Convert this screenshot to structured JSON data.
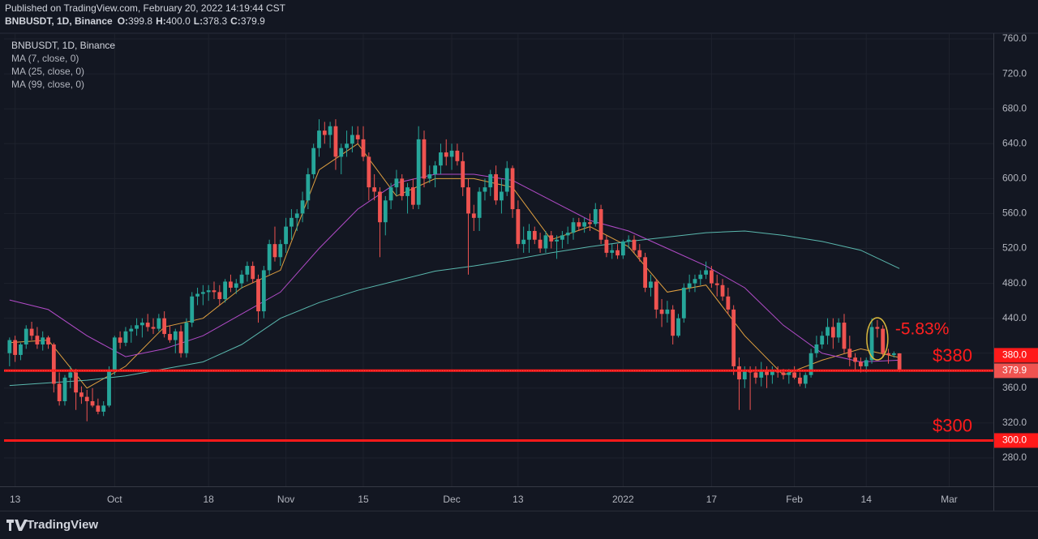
{
  "header": {
    "published": "Published on TradingView.com, February 20, 2022 14:19:44 CST",
    "ohlc": [
      {
        "key": "O:",
        "value": "399.8"
      },
      {
        "key": "H:",
        "value": "400.0"
      },
      {
        "key": "L:",
        "value": "378.3"
      },
      {
        "key": "C:",
        "value": "379.9"
      }
    ]
  },
  "chart_data": {
    "type": "candlestick",
    "title": "BNBUSDT, 1D, Binance",
    "x": [
      "2021-09-12",
      "2021-09-13",
      "2021-09-14",
      "2021-09-15",
      "2021-09-16",
      "2021-09-17",
      "2021-09-18",
      "2021-09-19",
      "2021-09-20",
      "2021-09-21",
      "2021-09-22",
      "2021-09-23",
      "2021-09-24",
      "2021-09-25",
      "2021-09-26",
      "2021-09-27",
      "2021-09-28",
      "2021-09-29",
      "2021-09-30",
      "2021-10-01",
      "2021-10-02",
      "2021-10-03",
      "2021-10-04",
      "2021-10-05",
      "2021-10-06",
      "2021-10-07",
      "2021-10-08",
      "2021-10-09",
      "2021-10-10",
      "2021-10-11",
      "2021-10-12",
      "2021-10-13",
      "2021-10-14",
      "2021-10-15",
      "2021-10-16",
      "2021-10-17",
      "2021-10-18",
      "2021-10-19",
      "2021-10-20",
      "2021-10-21",
      "2021-10-22",
      "2021-10-23",
      "2021-10-24",
      "2021-10-25",
      "2021-10-26",
      "2021-10-27",
      "2021-10-28",
      "2021-10-29",
      "2021-10-30",
      "2021-10-31",
      "2021-11-01",
      "2021-11-02",
      "2021-11-03",
      "2021-11-04",
      "2021-11-05",
      "2021-11-06",
      "2021-11-07",
      "2021-11-08",
      "2021-11-09",
      "2021-11-10",
      "2021-11-11",
      "2021-11-12",
      "2021-11-13",
      "2021-11-14",
      "2021-11-15",
      "2021-11-16",
      "2021-11-17",
      "2021-11-18",
      "2021-11-19",
      "2021-11-20",
      "2021-11-21",
      "2021-11-22",
      "2021-11-23",
      "2021-11-24",
      "2021-11-25",
      "2021-11-26",
      "2021-11-27",
      "2021-11-28",
      "2021-11-29",
      "2021-11-30",
      "2021-12-01",
      "2021-12-02",
      "2021-12-03",
      "2021-12-04",
      "2021-12-05",
      "2021-12-06",
      "2021-12-07",
      "2021-12-08",
      "2021-12-09",
      "2021-12-10",
      "2021-12-11",
      "2021-12-12",
      "2021-12-13",
      "2021-12-14",
      "2021-12-15",
      "2021-12-16",
      "2021-12-17",
      "2021-12-18",
      "2021-12-19",
      "2021-12-20",
      "2021-12-21",
      "2021-12-22",
      "2021-12-23",
      "2021-12-24",
      "2021-12-25",
      "2021-12-26",
      "2021-12-27",
      "2021-12-28",
      "2021-12-29",
      "2021-12-30",
      "2021-12-31",
      "2022-01-01",
      "2022-01-02",
      "2022-01-03",
      "2022-01-04",
      "2022-01-05",
      "2022-01-06",
      "2022-01-07",
      "2022-01-08",
      "2022-01-09",
      "2022-01-10",
      "2022-01-11",
      "2022-01-12",
      "2022-01-13",
      "2022-01-14",
      "2022-01-15",
      "2022-01-16",
      "2022-01-17",
      "2022-01-18",
      "2022-01-19",
      "2022-01-20",
      "2022-01-21",
      "2022-01-22",
      "2022-01-23",
      "2022-01-24",
      "2022-01-25",
      "2022-01-26",
      "2022-01-27",
      "2022-01-28",
      "2022-01-29",
      "2022-01-30",
      "2022-01-31",
      "2022-02-01",
      "2022-02-02",
      "2022-02-03",
      "2022-02-04",
      "2022-02-05",
      "2022-02-06",
      "2022-02-07",
      "2022-02-08",
      "2022-02-09",
      "2022-02-10",
      "2022-02-11",
      "2022-02-12",
      "2022-02-13",
      "2022-02-14",
      "2022-02-15",
      "2022-02-16",
      "2022-02-17",
      "2022-02-18",
      "2022-02-19",
      "2022-02-20"
    ],
    "open": [
      400,
      415,
      398,
      410,
      428,
      420,
      410,
      418,
      410,
      365,
      345,
      372,
      378,
      355,
      350,
      345,
      340,
      333,
      340,
      380,
      418,
      412,
      425,
      428,
      432,
      435,
      430,
      428,
      440,
      422,
      415,
      425,
      400,
      435,
      465,
      468,
      470,
      472,
      470,
      462,
      482,
      475,
      480,
      490,
      500,
      485,
      448,
      495,
      525,
      510,
      525,
      545,
      555,
      560,
      575,
      605,
      635,
      655,
      650,
      660,
      625,
      635,
      640,
      650,
      645,
      625,
      590,
      585,
      550,
      575,
      590,
      600,
      580,
      590,
      570,
      645,
      600,
      605,
      615,
      630,
      625,
      632,
      620,
      590,
      560,
      555,
      585,
      590,
      605,
      575,
      585,
      612,
      565,
      525,
      530,
      540,
      530,
      520,
      535,
      528,
      530,
      535,
      538,
      550,
      545,
      550,
      548,
      565,
      530,
      515,
      518,
      512,
      528,
      530,
      518,
      510,
      475,
      482,
      450,
      445,
      450,
      420,
      440,
      475,
      480,
      485,
      490,
      495,
      480,
      478,
      465,
      450,
      385,
      370,
      380,
      378,
      372,
      380,
      375,
      380,
      378,
      375,
      378,
      372,
      365,
      375,
      400,
      410,
      420,
      430,
      418,
      435,
      405,
      395,
      390,
      385,
      392,
      430,
      428,
      400,
      398,
      399.8
    ],
    "high": [
      418,
      420,
      412,
      432,
      436,
      430,
      425,
      420,
      412,
      378,
      375,
      385,
      382,
      362,
      358,
      360,
      348,
      345,
      385,
      420,
      425,
      430,
      432,
      440,
      440,
      445,
      440,
      445,
      448,
      432,
      428,
      432,
      440,
      470,
      475,
      478,
      478,
      482,
      478,
      485,
      490,
      485,
      495,
      505,
      505,
      490,
      500,
      530,
      545,
      530,
      555,
      565,
      565,
      585,
      612,
      640,
      668,
      665,
      665,
      668,
      640,
      655,
      660,
      660,
      660,
      630,
      605,
      590,
      580,
      595,
      610,
      605,
      595,
      600,
      660,
      655,
      615,
      620,
      640,
      645,
      640,
      640,
      630,
      600,
      570,
      590,
      600,
      610,
      615,
      600,
      620,
      615,
      575,
      545,
      548,
      545,
      538,
      540,
      540,
      535,
      540,
      545,
      555,
      555,
      555,
      560,
      572,
      570,
      535,
      525,
      525,
      530,
      535,
      535,
      525,
      515,
      490,
      485,
      462,
      460,
      455,
      445,
      480,
      490,
      490,
      495,
      505,
      500,
      490,
      485,
      475,
      455,
      395,
      385,
      385,
      385,
      390,
      385,
      385,
      385,
      382,
      382,
      385,
      378,
      378,
      405,
      420,
      425,
      440,
      440,
      440,
      445,
      420,
      400,
      395,
      395,
      440,
      438,
      432,
      405,
      402,
      400
    ],
    "low": [
      385,
      390,
      392,
      405,
      415,
      405,
      403,
      405,
      355,
      340,
      340,
      360,
      335,
      342,
      322,
      338,
      330,
      328,
      338,
      375,
      405,
      408,
      412,
      420,
      418,
      425,
      422,
      425,
      418,
      412,
      400,
      395,
      395,
      430,
      455,
      455,
      460,
      462,
      455,
      458,
      470,
      468,
      474,
      482,
      480,
      435,
      440,
      490,
      505,
      500,
      515,
      530,
      540,
      550,
      565,
      600,
      625,
      640,
      635,
      610,
      605,
      625,
      630,
      640,
      620,
      575,
      575,
      510,
      535,
      565,
      580,
      575,
      560,
      565,
      565,
      590,
      595,
      590,
      605,
      615,
      610,
      615,
      580,
      490,
      540,
      540,
      575,
      580,
      570,
      560,
      580,
      555,
      520,
      515,
      515,
      525,
      515,
      515,
      520,
      508,
      520,
      525,
      530,
      540,
      538,
      540,
      545,
      525,
      510,
      508,
      508,
      508,
      520,
      515,
      505,
      470,
      465,
      440,
      430,
      435,
      410,
      418,
      435,
      470,
      470,
      478,
      485,
      475,
      465,
      460,
      445,
      375,
      335,
      360,
      335,
      365,
      362,
      360,
      365,
      372,
      370,
      365,
      370,
      362,
      360,
      372,
      395,
      405,
      410,
      405,
      412,
      400,
      385,
      380,
      378,
      378,
      388,
      418,
      395,
      388,
      395,
      378.3
    ],
    "close": [
      415,
      398,
      410,
      428,
      420,
      410,
      418,
      410,
      365,
      345,
      372,
      378,
      355,
      350,
      345,
      340,
      333,
      340,
      380,
      418,
      412,
      425,
      428,
      432,
      435,
      430,
      428,
      440,
      422,
      415,
      425,
      400,
      435,
      465,
      468,
      470,
      472,
      470,
      462,
      482,
      475,
      480,
      490,
      500,
      485,
      448,
      495,
      525,
      510,
      525,
      545,
      555,
      560,
      575,
      605,
      635,
      655,
      650,
      660,
      625,
      635,
      640,
      650,
      645,
      625,
      590,
      585,
      550,
      575,
      590,
      600,
      580,
      590,
      570,
      645,
      600,
      605,
      615,
      630,
      625,
      632,
      620,
      590,
      560,
      555,
      585,
      590,
      605,
      575,
      585,
      612,
      565,
      525,
      530,
      540,
      530,
      520,
      535,
      528,
      530,
      535,
      538,
      550,
      545,
      550,
      548,
      565,
      530,
      515,
      518,
      512,
      528,
      530,
      518,
      510,
      475,
      482,
      450,
      445,
      450,
      420,
      440,
      475,
      480,
      485,
      490,
      495,
      480,
      478,
      465,
      450,
      385,
      370,
      380,
      378,
      372,
      380,
      375,
      380,
      378,
      375,
      378,
      372,
      365,
      375,
      400,
      410,
      420,
      430,
      418,
      435,
      405,
      395,
      390,
      385,
      392,
      430,
      428,
      400,
      398,
      399.8,
      379.9
    ],
    "up_color": "#26a69a",
    "down_color": "#ef5350",
    "indicators": {
      "x": [
        "2021-09-12",
        "2021-09-19",
        "2021-09-26",
        "2021-10-03",
        "2021-10-10",
        "2021-10-17",
        "2021-10-24",
        "2021-10-31",
        "2021-11-07",
        "2021-11-14",
        "2021-11-21",
        "2021-11-28",
        "2021-12-05",
        "2021-12-12",
        "2021-12-19",
        "2021-12-26",
        "2022-01-02",
        "2022-01-09",
        "2022-01-16",
        "2022-01-23",
        "2022-01-30",
        "2022-02-06",
        "2022-02-13",
        "2022-02-20"
      ],
      "series": [
        {
          "name": "MA (7, close, 0)",
          "color": "#e0a040",
          "values": [
            412,
            415,
            360,
            385,
            430,
            440,
            475,
            495,
            610,
            640,
            580,
            600,
            600,
            590,
            530,
            545,
            522,
            470,
            478,
            420,
            375,
            392,
            405,
            395
          ]
        },
        {
          "name": "MA (25, close, 0)",
          "color": "#b24bc8",
          "values": [
            461,
            450,
            420,
            396,
            405,
            420,
            445,
            470,
            520,
            565,
            595,
            605,
            605,
            598,
            575,
            552,
            540,
            520,
            500,
            475,
            432,
            400,
            390,
            392
          ]
        },
        {
          "name": "MA (99, close, 0)",
          "color": "#5ab8ae",
          "values": [
            363,
            366,
            369,
            374,
            382,
            390,
            410,
            440,
            458,
            472,
            483,
            494,
            500,
            507,
            515,
            522,
            528,
            533,
            538,
            540,
            535,
            528,
            518,
            497
          ]
        }
      ]
    },
    "xlim": [
      "2021-09-11",
      "2022-03-09"
    ],
    "xticks": [
      {
        "value": "2021-09-13",
        "label": "13"
      },
      {
        "value": "2021-10-01",
        "label": "Oct"
      },
      {
        "value": "2021-10-18",
        "label": "18"
      },
      {
        "value": "2021-11-01",
        "label": "Nov"
      },
      {
        "value": "2021-11-15",
        "label": "15"
      },
      {
        "value": "2021-12-01",
        "label": "Dec"
      },
      {
        "value": "2021-12-13",
        "label": "13"
      },
      {
        "value": "2022-01-01",
        "label": "2022"
      },
      {
        "value": "2022-01-17",
        "label": "17"
      },
      {
        "value": "2022-02-01",
        "label": "Feb"
      },
      {
        "value": "2022-02-14",
        "label": "14"
      },
      {
        "value": "2022-03-01",
        "label": "Mar"
      }
    ],
    "ylim": [
      247.5,
      765.6
    ],
    "yticks": [
      {
        "value": 280,
        "label": "280.0"
      },
      {
        "value": 320,
        "label": "320.0"
      },
      {
        "value": 360,
        "label": "360.0"
      },
      {
        "value": 400,
        "label": "400.0"
      },
      {
        "value": 440,
        "label": "440.0"
      },
      {
        "value": 480,
        "label": "480.0"
      },
      {
        "value": 520,
        "label": "520.0"
      },
      {
        "value": 560,
        "label": "560.0"
      },
      {
        "value": 600,
        "label": "600.0"
      },
      {
        "value": 640,
        "label": "640.0"
      },
      {
        "value": 680,
        "label": "680.0"
      },
      {
        "value": 720,
        "label": "720.0"
      },
      {
        "value": 760,
        "label": "760.0"
      }
    ],
    "grid": true,
    "hlines": [
      {
        "value": 380,
        "label": "380.0",
        "text": "$380",
        "color": "#ff1a1a"
      },
      {
        "value": 300,
        "label": "300.0",
        "text": "$300",
        "color": "#ff1a1a"
      }
    ],
    "last_price": {
      "value": 379.9,
      "label": "379.9"
    },
    "annotations": [
      {
        "text": "-5.83%"
      }
    ]
  },
  "branding": "TradingView"
}
